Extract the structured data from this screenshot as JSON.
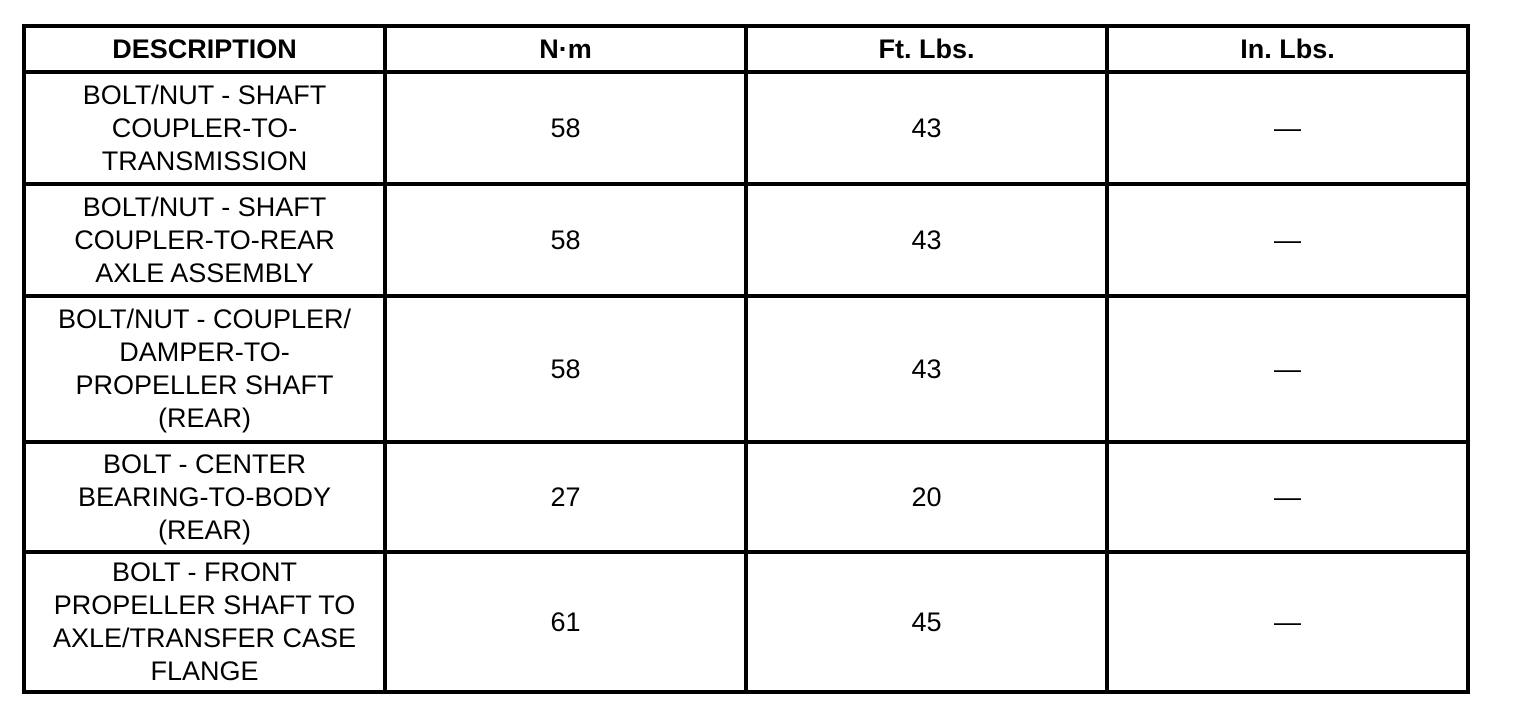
{
  "table": {
    "columns": [
      "DESCRIPTION",
      "N·m",
      "Ft. Lbs.",
      "In. Lbs."
    ],
    "rows": [
      {
        "description": "BOLT/NUT - SHAFT\nCOUPLER-TO-\nTRANSMISSION",
        "nm": "58",
        "ft_lbs": "43",
        "in_lbs": "—"
      },
      {
        "description": "BOLT/NUT - SHAFT\nCOUPLER-TO-REAR\nAXLE ASSEMBLY",
        "nm": "58",
        "ft_lbs": "43",
        "in_lbs": "—"
      },
      {
        "description": "BOLT/NUT - COUPLER/\nDAMPER-TO-\nPROPELLER SHAFT\n(REAR)",
        "nm": "58",
        "ft_lbs": "43",
        "in_lbs": "—"
      },
      {
        "description": "BOLT - CENTER\nBEARING-TO-BODY\n(REAR)",
        "nm": "27",
        "ft_lbs": "20",
        "in_lbs": "—"
      },
      {
        "description": "BOLT - FRONT\nPROPELLER SHAFT TO\nAXLE/TRANSFER CASE\nFLANGE",
        "nm": "61",
        "ft_lbs": "45",
        "in_lbs": "—"
      }
    ],
    "colors": {
      "border": "#000000",
      "text": "#000000",
      "background": "#ffffff"
    }
  }
}
